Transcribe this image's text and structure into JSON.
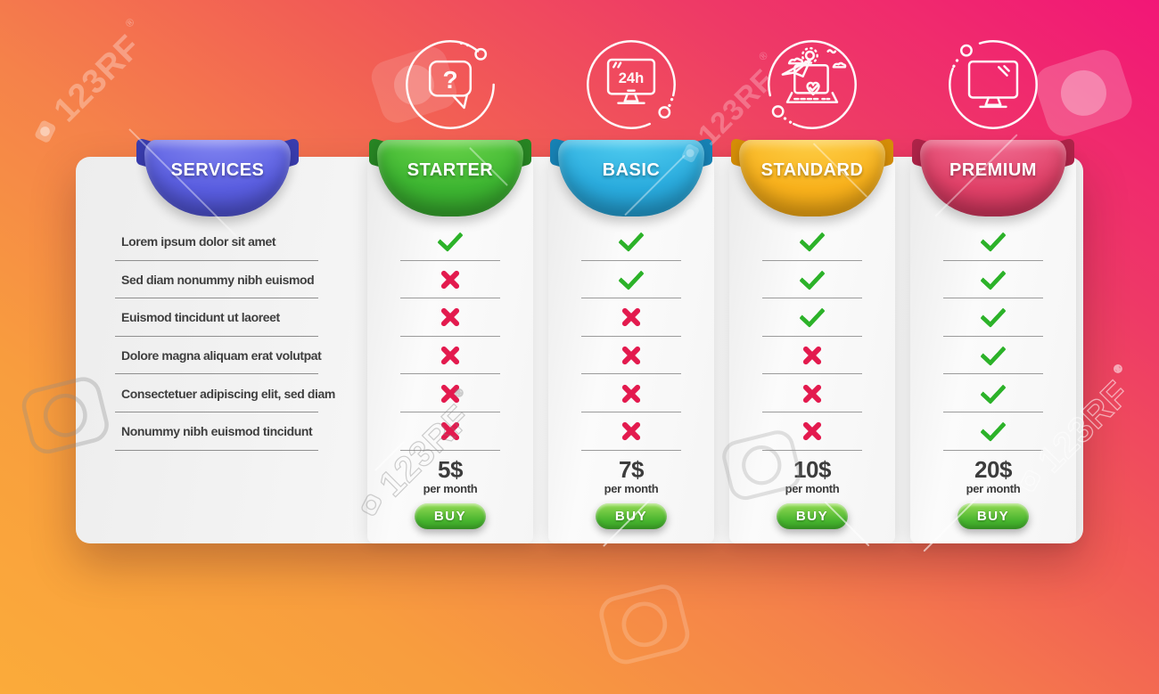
{
  "watermark": {
    "text": "123RF",
    "reg": "®"
  },
  "background": {
    "gradient": [
      "#f21677",
      "#ee3a66",
      "#f25d55",
      "#f5824a",
      "#f89d3e",
      "#fbab3a"
    ]
  },
  "icons": {
    "question_glyph": "?",
    "hours_label": "24h",
    "names": [
      "question-mark-chat-icon",
      "24h-monitor-icon",
      "flight-booking-laptop-icon",
      "monitor-icon"
    ]
  },
  "table": {
    "services": {
      "title": "SERVICES",
      "accent_color": "#5a5ee0",
      "rows": [
        "Lorem ipsum dolor sit amet",
        "Sed diam nonummy nibh euismod",
        "Euismod tincidunt ut laoreet",
        "Dolore magna aliquam erat volutpat",
        "Consectetuer adipiscing elit, sed diam",
        "Nonummy nibh euismod tincidunt"
      ]
    },
    "plans": [
      {
        "name": "STARTER",
        "accent_color": "#3db531",
        "features": [
          true,
          false,
          false,
          false,
          false,
          false
        ],
        "price": "5$",
        "period": "per month",
        "buy_label": "BUY"
      },
      {
        "name": "BASIC",
        "accent_color": "#2aabdd",
        "features": [
          true,
          true,
          false,
          false,
          false,
          false
        ],
        "price": "7$",
        "period": "per month",
        "buy_label": "BUY"
      },
      {
        "name": "STANDARD",
        "accent_color": "#f8b11c",
        "features": [
          true,
          true,
          true,
          false,
          false,
          false
        ],
        "price": "10$",
        "period": "per month",
        "buy_label": "BUY"
      },
      {
        "name": "PREMIUM",
        "accent_color": "#e04168",
        "features": [
          true,
          true,
          true,
          true,
          true,
          true
        ],
        "price": "20$",
        "period": "per month",
        "buy_label": "BUY"
      }
    ],
    "marks": {
      "check_color": "#2cb229",
      "cross_color": "#e31a4e",
      "buy_button_color": "#45b22d"
    }
  }
}
